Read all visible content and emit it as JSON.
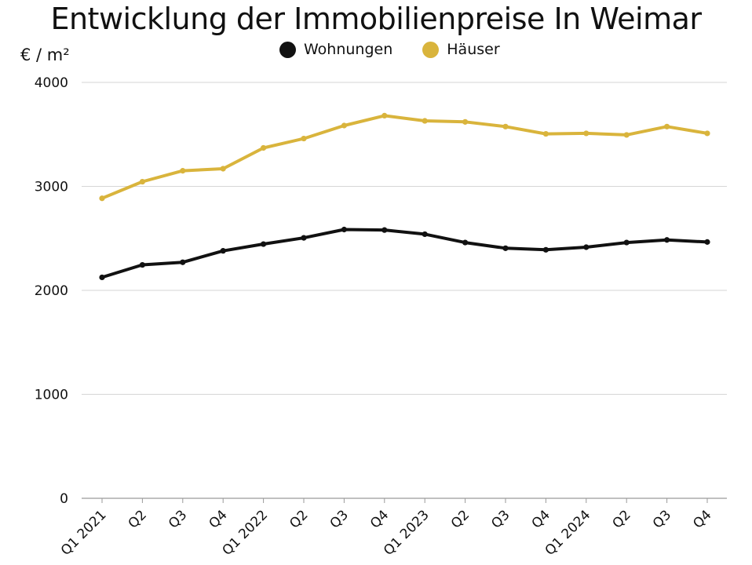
{
  "chart_data": {
    "type": "line",
    "title": "Entwicklung der Immobilienpreise In Weimar",
    "ylabel": "€ / m²",
    "ylim": [
      0,
      4000
    ],
    "yticks": [
      "0",
      "1000",
      "2000",
      "3000",
      "4000"
    ],
    "grid": true,
    "legend_position": "top-center",
    "categories": [
      "Q1 2021",
      "Q2",
      "Q3",
      "Q4",
      "Q1 2022",
      "Q2",
      "Q3",
      "Q4",
      "Q1 2023",
      "Q2",
      "Q3",
      "Q4",
      "Q1 2024",
      "Q2",
      "Q3",
      "Q4"
    ],
    "series": [
      {
        "name": "Wohnungen",
        "color": "#111111",
        "values": [
          2125,
          2245,
          2270,
          2380,
          2445,
          2505,
          2585,
          2580,
          2540,
          2460,
          2405,
          2390,
          2415,
          2460,
          2485,
          2465
        ]
      },
      {
        "name": "Häuser",
        "color": "#d9b43c",
        "values": [
          2885,
          3045,
          3150,
          3170,
          3370,
          3460,
          3585,
          3680,
          3630,
          3620,
          3575,
          3505,
          3510,
          3495,
          3575,
          3510
        ]
      }
    ]
  }
}
